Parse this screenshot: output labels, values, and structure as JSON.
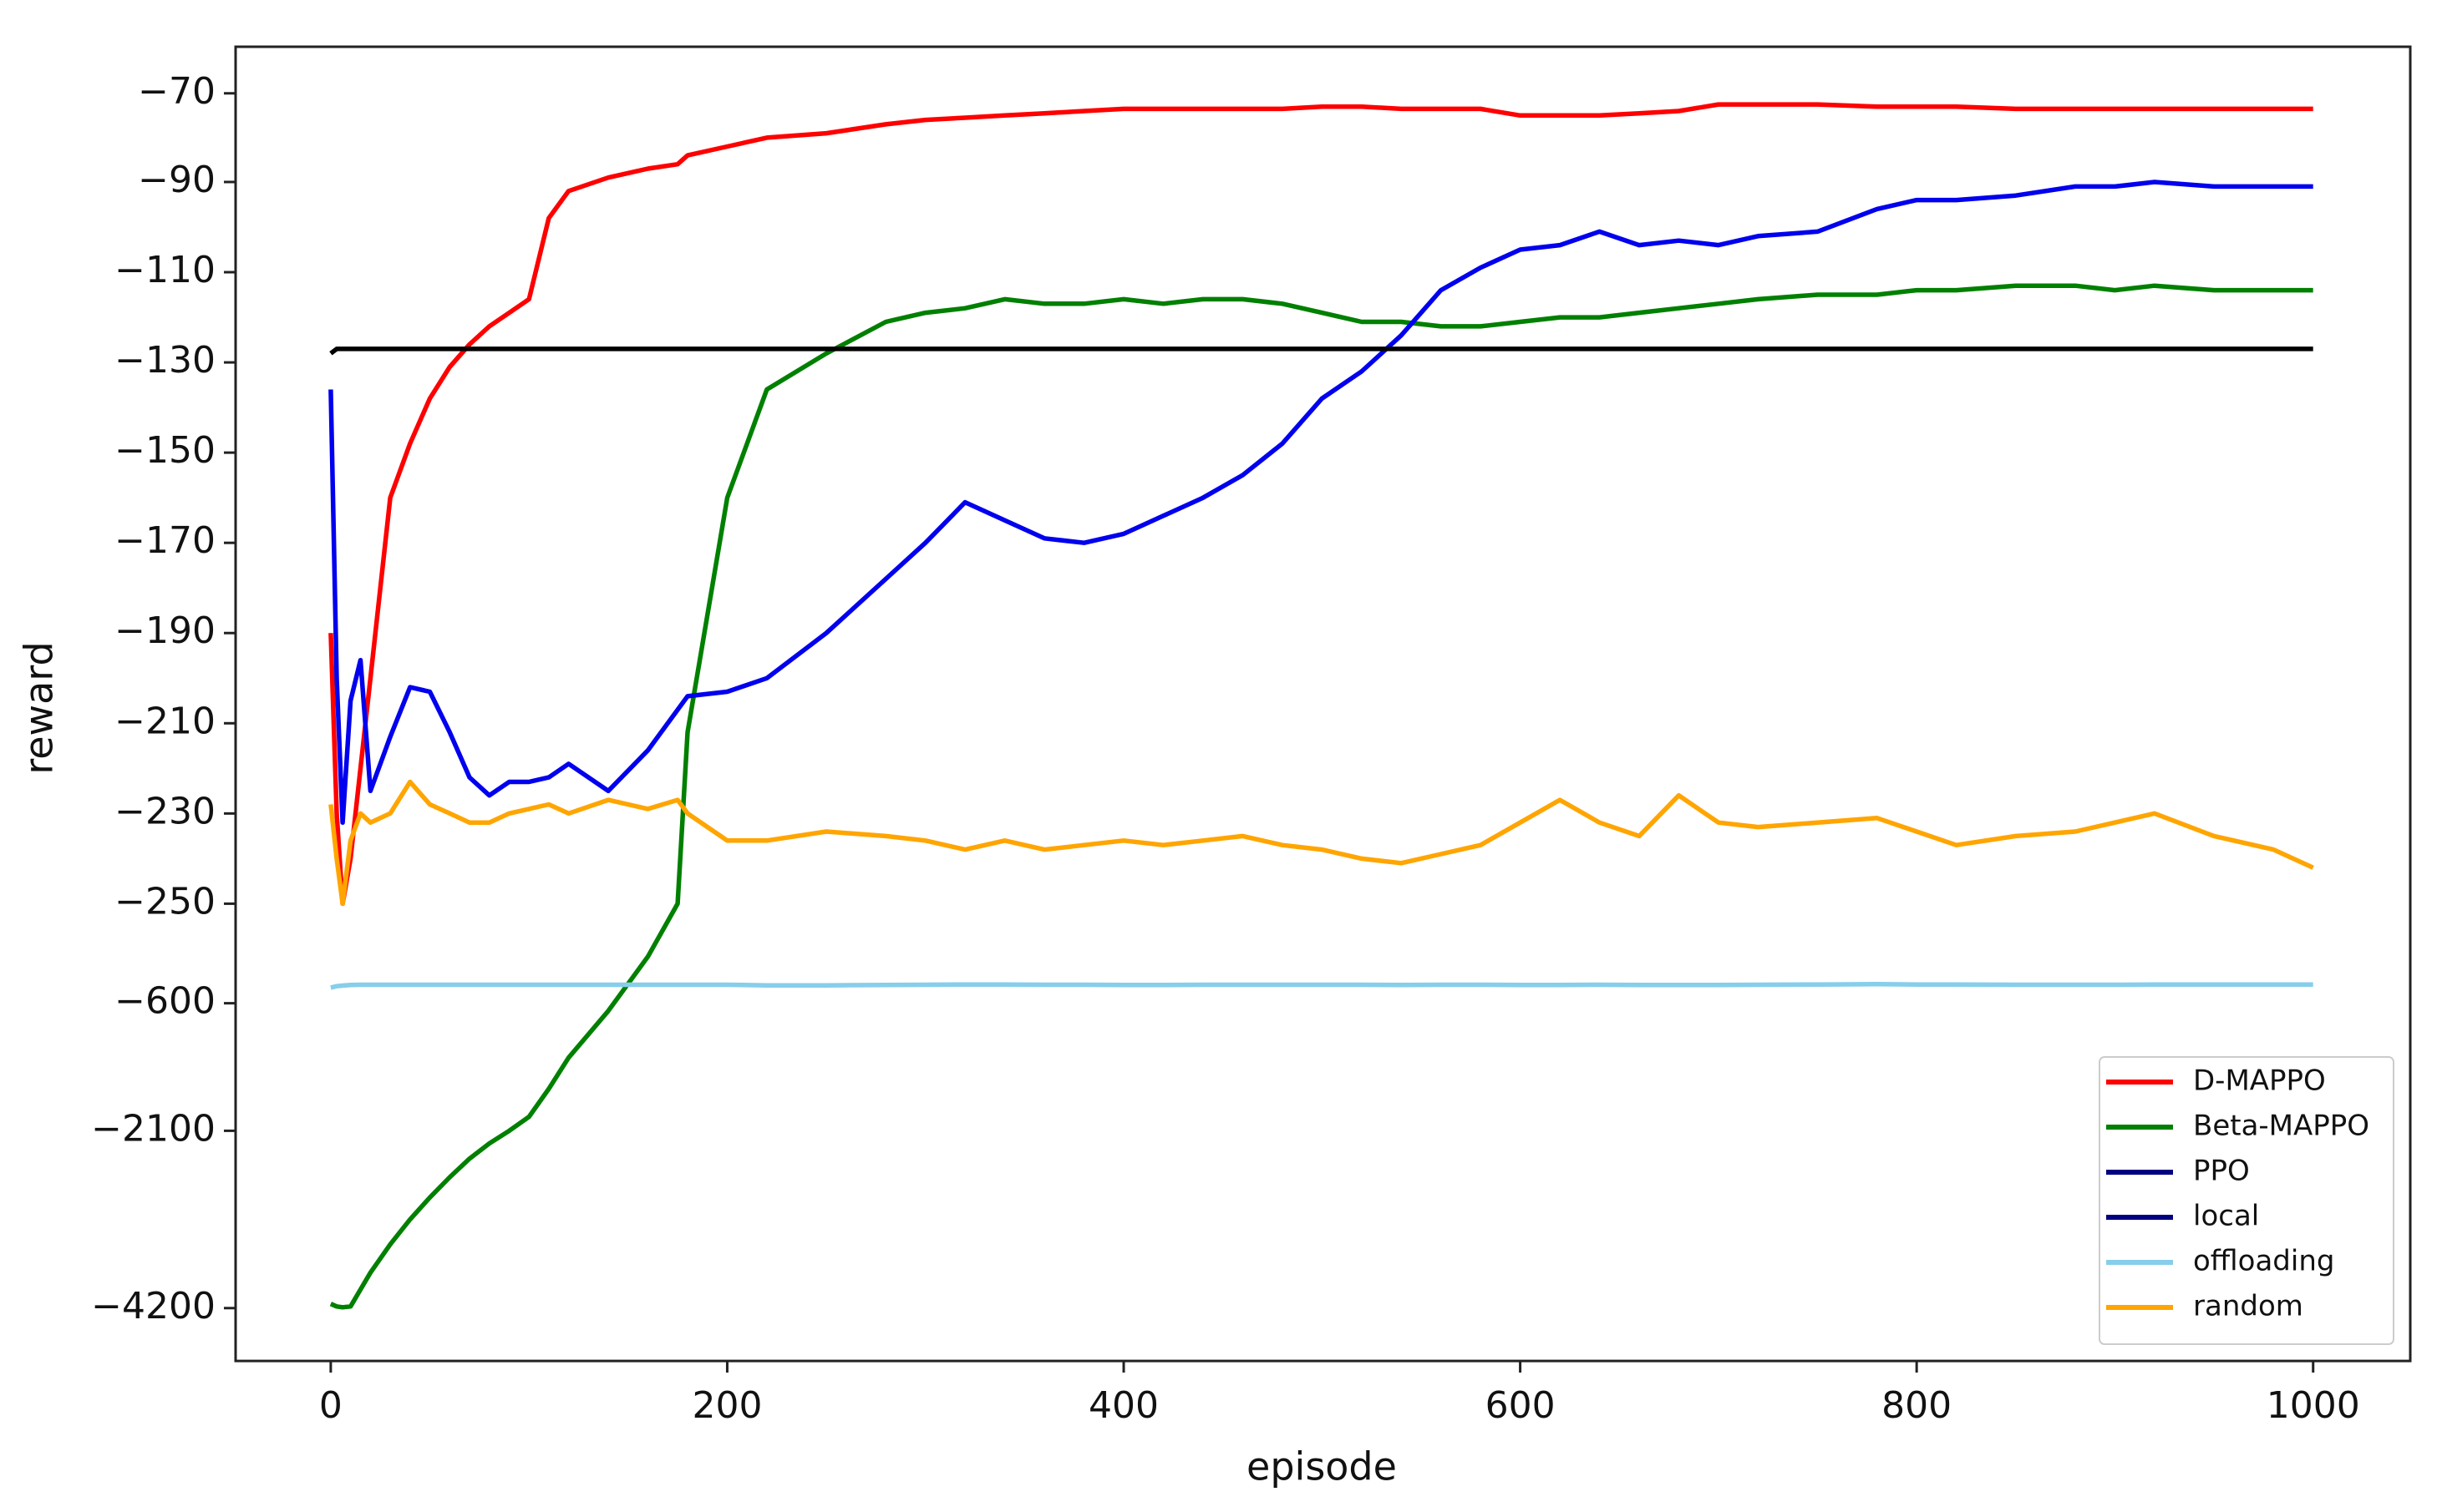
{
  "chart_data": {
    "type": "line",
    "xlabel": "episode",
    "ylabel": "reward",
    "x": [
      0,
      3,
      6,
      10,
      15,
      20,
      30,
      40,
      50,
      60,
      70,
      80,
      90,
      100,
      110,
      120,
      140,
      160,
      175,
      180,
      200,
      220,
      250,
      280,
      300,
      320,
      340,
      360,
      380,
      400,
      420,
      440,
      460,
      480,
      500,
      520,
      540,
      560,
      580,
      600,
      620,
      640,
      660,
      680,
      700,
      720,
      750,
      780,
      800,
      820,
      850,
      880,
      900,
      920,
      950,
      980,
      1000
    ],
    "series": [
      {
        "name": "D-MAPPO",
        "color": "#ff0000",
        "legend_color": "#ff0000",
        "values": [
          -190,
          -230,
          -250,
          -240,
          -220,
          -200,
          -160,
          -148,
          -138,
          -131,
          -126,
          -122,
          -119,
          -116,
          -98,
          -92,
          -89,
          -87,
          -86,
          -84,
          -82,
          -80,
          -79,
          -77,
          -76,
          -75.5,
          -75,
          -74.5,
          -74,
          -73.5,
          -73.5,
          -73.5,
          -73.5,
          -73.5,
          -73,
          -73,
          -73.5,
          -73.5,
          -73.5,
          -75,
          -75,
          -75,
          -74.5,
          -74,
          -72.5,
          -72.5,
          -72.5,
          -73,
          -73,
          -73,
          -73.5,
          -73.5,
          -73.5,
          -73.5,
          -73.5,
          -73.5,
          -73.5
        ]
      },
      {
        "name": "Beta-MAPPO",
        "color": "#008000",
        "legend_color": "#008000",
        "values": [
          -4150,
          -4180,
          -4190,
          -4180,
          -3980,
          -3780,
          -3445,
          -3150,
          -2890,
          -2650,
          -2430,
          -2250,
          -2100,
          -1935,
          -1606,
          -1240,
          -690,
          -436,
          -250,
          -212,
          -160,
          -136,
          -128,
          -121,
          -119,
          -118,
          -116,
          -117,
          -117,
          -116,
          -117,
          -116,
          -116,
          -117,
          -119,
          -121,
          -121,
          -122,
          -122,
          -121,
          -120,
          -120,
          -119,
          -118,
          -117,
          -116,
          -115,
          -115,
          -114,
          -114,
          -113,
          -113,
          -114,
          -113,
          -114,
          -114,
          -114
        ]
      },
      {
        "name": "PPO",
        "color": "#0000ee",
        "legend_color": "#000080",
        "values": [
          -136,
          -200,
          -232,
          -205,
          -196,
          -225,
          -213,
          -202,
          -203,
          -212,
          -222,
          -226,
          -223,
          -223,
          -222,
          -219,
          -225,
          -216,
          -207,
          -204,
          -203,
          -200,
          -190,
          -178,
          -170,
          -161,
          -165,
          -169,
          -170,
          -168,
          -164,
          -160,
          -155,
          -148,
          -138,
          -132,
          -124,
          -114,
          -109,
          -105,
          -104,
          -101,
          -104,
          -103,
          -104,
          -102,
          -101,
          -96,
          -94,
          -94,
          -93,
          -91,
          -91,
          -90,
          -91,
          -91,
          -91
        ]
      },
      {
        "name": "local",
        "color": "#000000",
        "legend_color": "#000080",
        "values": [
          -128,
          -127,
          -127,
          -127,
          -127,
          -127,
          -127,
          -127,
          -127,
          -127,
          -127,
          -127,
          -127,
          -127,
          -127,
          -127,
          -127,
          -127,
          -127,
          -127,
          -127,
          -127,
          -127,
          -127,
          -127,
          -127,
          -127,
          -127,
          -127,
          -127,
          -127,
          -127,
          -127,
          -127,
          -127,
          -127,
          -127,
          -127,
          -127,
          -127,
          -127,
          -127,
          -127,
          -127,
          -127,
          -127,
          -127,
          -127,
          -127,
          -127,
          -127,
          -127,
          -127,
          -127,
          -127,
          -127,
          -127
        ]
      },
      {
        "name": "offloading",
        "color": "#87ceeb",
        "legend_color": "#87ceeb",
        "values": [
          -545,
          -540,
          -538,
          -536,
          -535,
          -535,
          -535,
          -535,
          -535,
          -535,
          -535,
          -535,
          -535,
          -535,
          -535,
          -535,
          -535,
          -535,
          -535,
          -535,
          -535,
          -537,
          -537,
          -536,
          -535,
          -534,
          -534,
          -535,
          -535,
          -536,
          -536,
          -535,
          -535,
          -535,
          -535,
          -535,
          -536,
          -535,
          -535,
          -536,
          -536,
          -535,
          -536,
          -536,
          -536,
          -535,
          -534,
          -533,
          -534,
          -534,
          -535,
          -535,
          -535,
          -534,
          -534,
          -534,
          -534
        ]
      },
      {
        "name": "random",
        "color": "#ffa500",
        "legend_color": "#ffa500",
        "values": [
          -228,
          -240,
          -250,
          -236,
          -230,
          -232,
          -230,
          -223,
          -228,
          -230,
          -232,
          -232,
          -230,
          -229,
          -228,
          -230,
          -227,
          -229,
          -227,
          -230,
          -236,
          -236,
          -234,
          -235,
          -236,
          -238,
          -236,
          -238,
          -237,
          -236,
          -237,
          -236,
          -235,
          -237,
          -238,
          -240,
          -241,
          -239,
          -237,
          -232,
          -227,
          -232,
          -235,
          -226,
          -232,
          -233,
          -232,
          -231,
          -234,
          -237,
          -235,
          -234,
          -232,
          -230,
          -235,
          -238,
          -242
        ]
      }
    ],
    "xlim": [
      -48,
      1049
    ],
    "xticks": [
      0,
      200,
      400,
      600,
      800,
      1000
    ],
    "ylim": [
      -60,
      -4826
    ],
    "yticks": [
      {
        "value": -70,
        "label": "−70"
      },
      {
        "value": -90,
        "label": "−90"
      },
      {
        "value": -110,
        "label": "−110"
      },
      {
        "value": -130,
        "label": "−130"
      },
      {
        "value": -150,
        "label": "−150"
      },
      {
        "value": -170,
        "label": "−170"
      },
      {
        "value": -190,
        "label": "−190"
      },
      {
        "value": -210,
        "label": "−210"
      },
      {
        "value": -230,
        "label": "−230"
      },
      {
        "value": -250,
        "label": "−250"
      },
      {
        "value": -600,
        "label": "−600"
      },
      {
        "value": -2100,
        "label": "−2100"
      },
      {
        "value": -4200,
        "label": "−4200"
      }
    ],
    "legend": "lower right",
    "grid": false
  }
}
